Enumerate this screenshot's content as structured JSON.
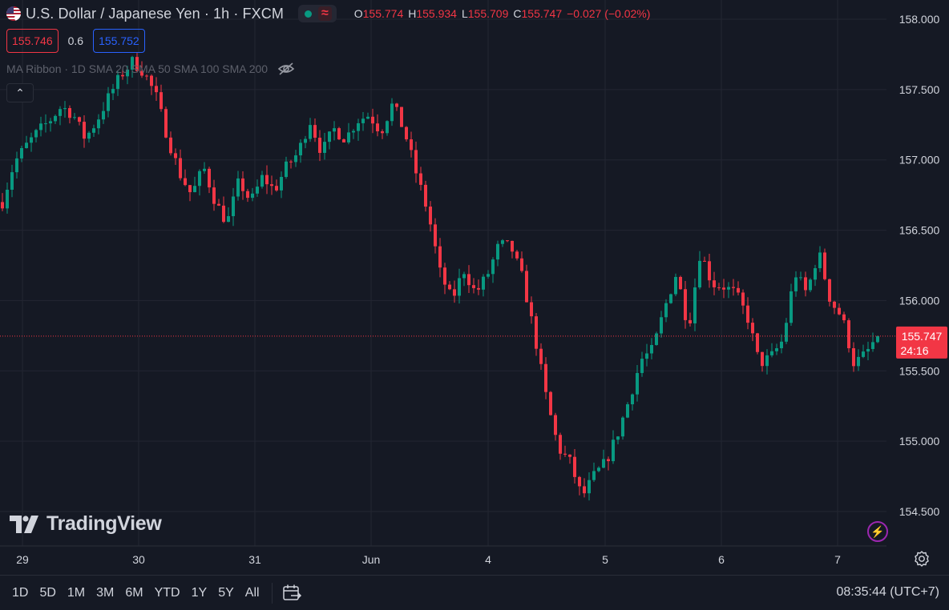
{
  "symbol": {
    "title": "U.S. Dollar / Japanese Yen · 1h · FXCM",
    "wave_glyph": "≈"
  },
  "ohlc": {
    "o_label": "O",
    "o": "155.774",
    "h_label": "H",
    "h": "155.934",
    "l_label": "L",
    "l": "155.709",
    "c_label": "C",
    "c": "155.747",
    "change": "−0.027 (−0.02%)"
  },
  "quote": {
    "sell": "155.746",
    "spread": "0.6",
    "buy": "155.752"
  },
  "indicator": {
    "label": "MA Ribbon · 1D SMA 20 SMA 50 SMA 100 SMA 200"
  },
  "collapse_glyph": "⌃",
  "logo": {
    "text": "TradingView"
  },
  "bolt_glyph": "⚡",
  "price_axis": {
    "ticks": [
      "158.000",
      "157.500",
      "157.000",
      "156.500",
      "156.000",
      "155.500",
      "155.000",
      "154.500"
    ],
    "current_price": "155.747",
    "countdown": "24:16"
  },
  "time_axis": {
    "labels": [
      "29",
      "30",
      "31",
      "Jun",
      "4",
      "5",
      "6",
      "7"
    ]
  },
  "ranges": [
    "1D",
    "5D",
    "1M",
    "3M",
    "6M",
    "YTD",
    "1Y",
    "5Y",
    "All"
  ],
  "clock": "08:35:44 (UTC+7)",
  "colors": {
    "up": "#089981",
    "down": "#f23645",
    "background": "#151924",
    "grid": "#232632",
    "text": "#d1d4dc"
  },
  "icons": {
    "flag": "us-flag-icon",
    "hide": "eye-off-icon",
    "calendar": "calendar-range-icon",
    "settings": "settings-gear-icon",
    "alert": "lightning-icon"
  },
  "chart_data": {
    "type": "candlestick",
    "title": "U.S. Dollar / Japanese Yen · 1h · FXCM",
    "interval": "1h",
    "x_labels": [
      "29",
      "30",
      "31",
      "Jun",
      "4",
      "5",
      "6",
      "7"
    ],
    "ylim": [
      154.25,
      158.1
    ],
    "grid": true,
    "last_price": 155.747,
    "path": [
      156.7,
      156.98,
      157.1,
      157.2,
      157.28,
      157.38,
      157.32,
      157.15,
      157.28,
      157.45,
      157.6,
      157.7,
      157.62,
      157.45,
      157.15,
      156.9,
      156.75,
      156.95,
      156.7,
      156.55,
      156.85,
      156.7,
      156.88,
      156.78,
      156.95,
      157.05,
      157.28,
      157.05,
      157.22,
      157.15,
      157.28,
      157.32,
      157.2,
      157.4,
      157.2,
      156.9,
      156.62,
      156.2,
      156.0,
      156.22,
      156.05,
      156.18,
      156.4,
      156.38,
      156.15,
      155.75,
      155.3,
      154.95,
      154.85,
      154.6,
      154.75,
      154.85,
      155.05,
      155.3,
      155.58,
      155.65,
      155.95,
      156.2,
      155.8,
      156.35,
      156.12,
      156.1,
      156.05,
      155.88,
      155.55,
      155.6,
      155.72,
      156.2,
      156.05,
      156.35,
      156.0,
      155.88,
      155.55,
      155.62,
      155.75
    ]
  }
}
